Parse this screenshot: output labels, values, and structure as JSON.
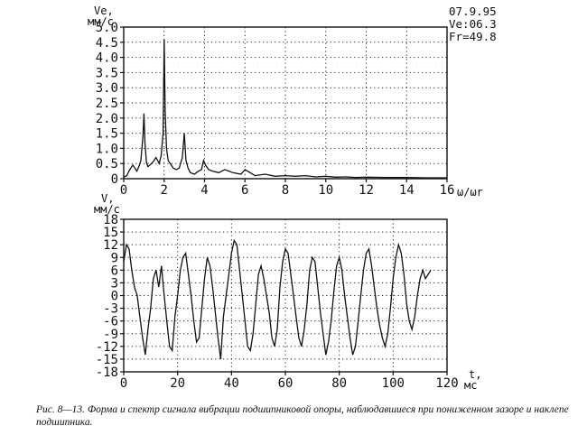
{
  "chart_data": [
    {
      "type": "line",
      "ylabel": "Ve,",
      "yunit": "мм/с",
      "xlabel": "ω/ωr",
      "xlim": [
        0,
        16
      ],
      "ylim": [
        0,
        5
      ],
      "xticks": [
        "0",
        "2",
        "4",
        "6",
        "8",
        "10",
        "12",
        "14",
        "16"
      ],
      "yticks": [
        "0",
        "0.5",
        "1.0",
        "1.5",
        "2.0",
        "2.5",
        "3.0",
        "3.5",
        "4.0",
        "4.5",
        "5.0"
      ],
      "grid": true,
      "info": [
        "07.9.95",
        "Ve:06.3",
        "Fr=49.8"
      ],
      "series": [
        {
          "x": [
            0,
            0.15,
            0.3,
            0.45,
            0.55,
            0.65,
            0.75,
            0.85,
            0.95,
            1.0,
            1.05,
            1.12,
            1.2,
            1.3,
            1.45,
            1.6,
            1.75,
            1.85,
            1.95,
            2.0,
            2.05,
            2.12,
            2.2,
            2.3,
            2.45,
            2.6,
            2.75,
            2.9,
            3.0,
            3.08,
            3.18,
            3.3,
            3.5,
            3.7,
            3.85,
            3.95,
            4.05,
            4.2,
            4.4,
            4.7,
            5.0,
            5.4,
            5.8,
            6.0,
            6.5,
            7.0,
            7.5,
            8.0,
            8.5,
            9.0,
            9.5,
            10.0,
            10.5,
            11.0,
            11.5,
            12.0,
            13.0,
            14.0,
            15.0,
            16.0
          ],
          "y": [
            0.05,
            0.1,
            0.3,
            0.45,
            0.35,
            0.25,
            0.4,
            0.6,
            1.4,
            2.15,
            1.2,
            0.55,
            0.4,
            0.45,
            0.55,
            0.7,
            0.5,
            0.75,
            1.5,
            4.6,
            2.2,
            1.0,
            0.6,
            0.5,
            0.35,
            0.3,
            0.35,
            0.7,
            1.5,
            0.6,
            0.35,
            0.2,
            0.15,
            0.25,
            0.3,
            0.6,
            0.45,
            0.3,
            0.25,
            0.2,
            0.3,
            0.2,
            0.15,
            0.3,
            0.1,
            0.15,
            0.08,
            0.1,
            0.08,
            0.1,
            0.06,
            0.08,
            0.05,
            0.06,
            0.04,
            0.05,
            0.04,
            0.04,
            0.03,
            0.03
          ]
        }
      ]
    },
    {
      "type": "line",
      "ylabel": "V,",
      "yunit": "мм/с",
      "xlabel": "t,",
      "xunit": "мс",
      "xlim": [
        0,
        120
      ],
      "ylim": [
        -18,
        18
      ],
      "xticks": [
        "0",
        "20",
        "40",
        "60",
        "80",
        "100",
        "120"
      ],
      "yticks": [
        "-18",
        "-15",
        "-12",
        "-9",
        "-6",
        "-3",
        "0",
        "3",
        "6",
        "9",
        "12",
        "15",
        "18"
      ],
      "grid": true,
      "series": [
        {
          "x": [
            0,
            1,
            2,
            3,
            4,
            5,
            6,
            7,
            8,
            9,
            10,
            11,
            12,
            13,
            14,
            15,
            16,
            17,
            18,
            19,
            20,
            21,
            22,
            23,
            24,
            25,
            26,
            27,
            28,
            29,
            30,
            31,
            32,
            33,
            34,
            35,
            36,
            37,
            38,
            39,
            40,
            41,
            42,
            43,
            44,
            45,
            46,
            47,
            48,
            49,
            50,
            51,
            52,
            53,
            54,
            55,
            56,
            57,
            58,
            59,
            60,
            61,
            62,
            63,
            64,
            65,
            66,
            67,
            68,
            69,
            70,
            71,
            72,
            73,
            74,
            75,
            76,
            77,
            78,
            79,
            80,
            81,
            82,
            83,
            84,
            85,
            86,
            87,
            88,
            89,
            90,
            91,
            92,
            93,
            94,
            95,
            96,
            97,
            98,
            99,
            100,
            101,
            102,
            103,
            104,
            105,
            106,
            107,
            108,
            109,
            110,
            111,
            112,
            113,
            114
          ],
          "y": [
            8,
            12,
            11,
            6,
            2,
            0,
            -5,
            -10,
            -14,
            -8,
            -3,
            4,
            6,
            2,
            7,
            0,
            -6,
            -12,
            -13,
            -5,
            0,
            6,
            9,
            10,
            5,
            0,
            -6,
            -11,
            -10,
            -3,
            4,
            9,
            7,
            2,
            -4,
            -10,
            -15,
            -5,
            0,
            5,
            10,
            13,
            12,
            6,
            0,
            -6,
            -12,
            -13,
            -9,
            -2,
            5,
            7,
            4,
            0,
            -4,
            -10,
            -12,
            -8,
            2,
            8,
            11,
            10,
            5,
            0,
            -5,
            -10,
            -12,
            -8,
            -2,
            6,
            9,
            8,
            2,
            -4,
            -9,
            -14,
            -11,
            -6,
            1,
            7,
            9,
            6,
            0,
            -5,
            -10,
            -14,
            -12,
            -6,
            0,
            6,
            10,
            11,
            7,
            2,
            -3,
            -7,
            -10,
            -12,
            -9,
            -3,
            4,
            9,
            12,
            10,
            5,
            -2,
            -6,
            -8,
            -5,
            0,
            4,
            6,
            4,
            5,
            6
          ]
        }
      ]
    }
  ],
  "caption": "Рис. 8—13. Форма и спектр сигнала вибрации подшипниковой опоры, наблюдавшиеся при пониженном зазоре и наклепе подшипника."
}
